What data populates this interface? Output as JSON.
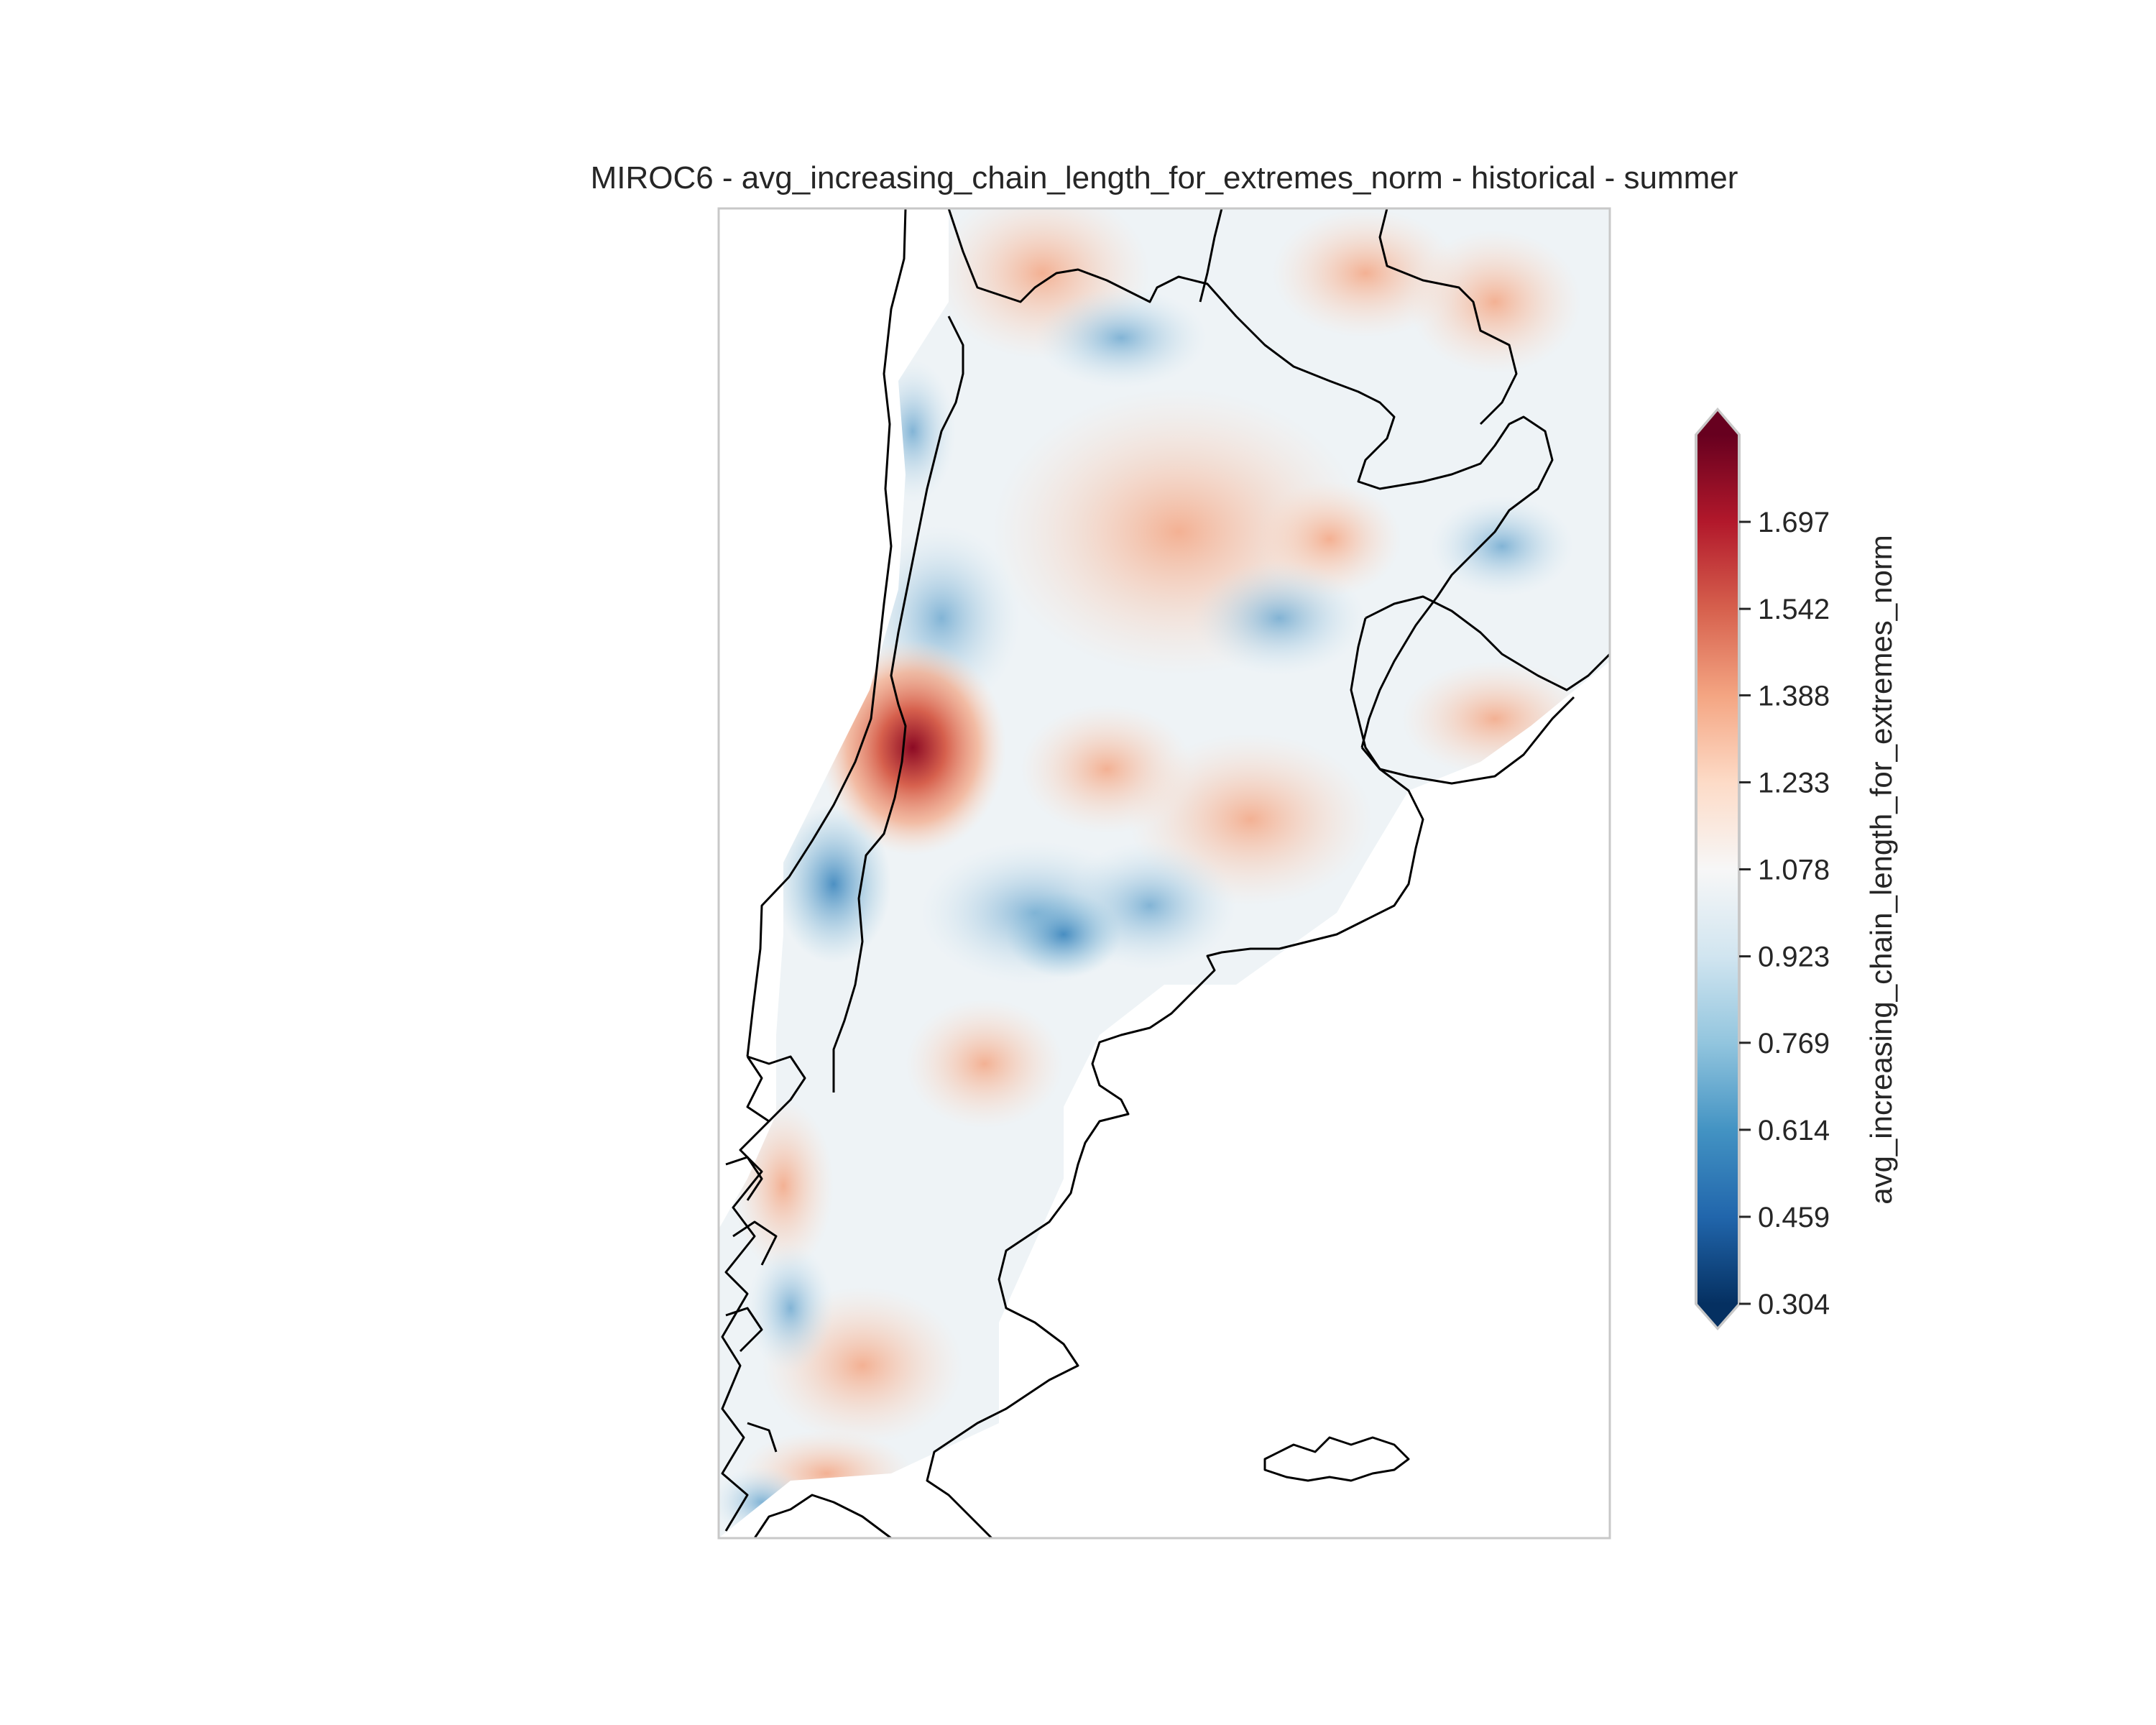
{
  "title": "MIROC6 - avg_increasing_chain_length_for_extremes_norm - historical - summer",
  "colorbar": {
    "label": "avg_increasing_chain_length_for_extremes_norm",
    "colormap": "RdBu_r",
    "extend": "both",
    "ticks": [
      "0.304",
      "0.459",
      "0.614",
      "0.769",
      "0.923",
      "1.078",
      "1.233",
      "1.388",
      "1.542",
      "1.697"
    ],
    "vmin": 0.304,
    "vmax": 1.852
  },
  "colors": {
    "frame": "#c8c8c8",
    "coastline": "#000000",
    "min_color": "#053061",
    "mid_color": "#f7f7f7",
    "max_color": "#67001f"
  },
  "field": {
    "region": "Argentina and surroundings",
    "description_values": {
      "maximum_hotspot": 1.85,
      "typical_range": [
        0.75,
        1.35
      ]
    }
  }
}
